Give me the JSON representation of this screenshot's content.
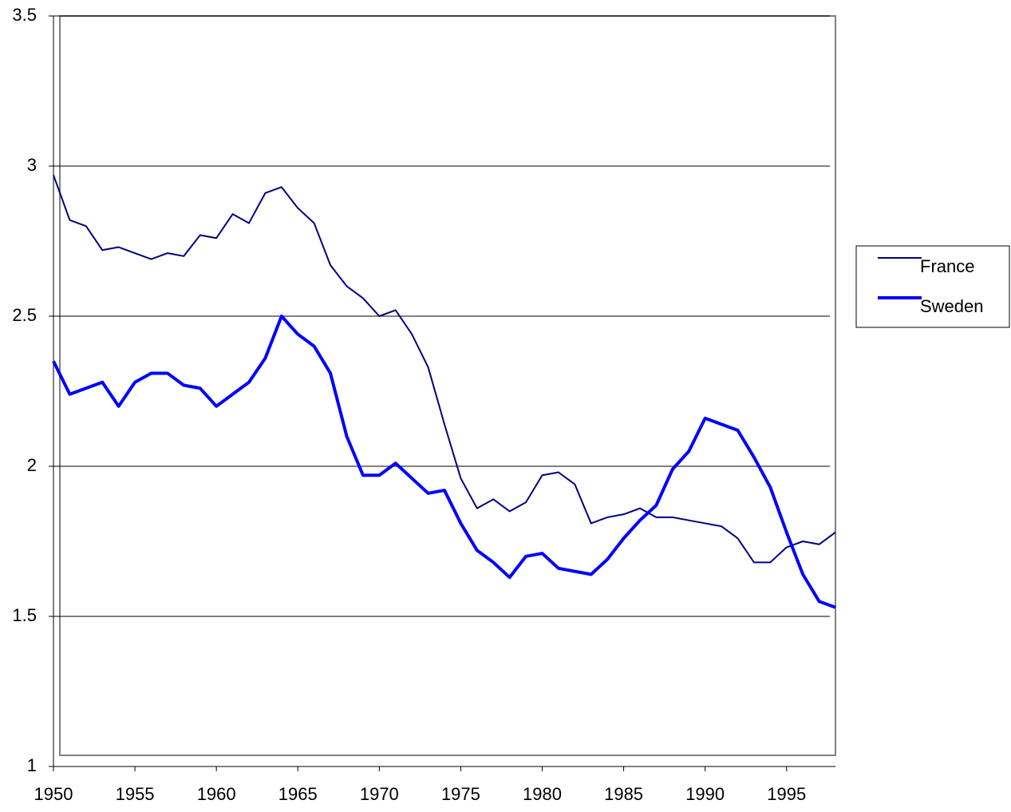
{
  "chart_data": {
    "type": "line",
    "x": [
      1950,
      1951,
      1952,
      1953,
      1954,
      1955,
      1956,
      1957,
      1958,
      1959,
      1960,
      1961,
      1962,
      1963,
      1964,
      1965,
      1966,
      1967,
      1968,
      1969,
      1970,
      1971,
      1972,
      1973,
      1974,
      1975,
      1976,
      1977,
      1978,
      1979,
      1980,
      1981,
      1982,
      1983,
      1984,
      1985,
      1986,
      1987,
      1988,
      1989,
      1990,
      1991,
      1992,
      1993,
      1994,
      1995,
      1996,
      1997,
      1998
    ],
    "series": [
      {
        "name": "France",
        "color": "#000080",
        "width": 2,
        "values": [
          2.97,
          2.82,
          2.8,
          2.72,
          2.73,
          2.71,
          2.69,
          2.71,
          2.7,
          2.77,
          2.76,
          2.84,
          2.81,
          2.91,
          2.93,
          2.86,
          2.81,
          2.67,
          2.6,
          2.56,
          2.5,
          2.52,
          2.44,
          2.33,
          2.14,
          1.96,
          1.86,
          1.89,
          1.85,
          1.88,
          1.97,
          1.98,
          1.94,
          1.81,
          1.83,
          1.84,
          1.86,
          1.83,
          1.83,
          1.82,
          1.81,
          1.8,
          1.76,
          1.68,
          1.68,
          1.73,
          1.75,
          1.74,
          1.78
        ]
      },
      {
        "name": "Sweden",
        "color": "#0000ff",
        "width": 4,
        "values": [
          2.35,
          2.24,
          2.26,
          2.28,
          2.2,
          2.28,
          2.31,
          2.31,
          2.27,
          2.26,
          2.2,
          2.24,
          2.28,
          2.36,
          2.5,
          2.44,
          2.4,
          2.31,
          2.1,
          1.97,
          1.97,
          2.01,
          1.96,
          1.91,
          1.92,
          1.81,
          1.72,
          1.68,
          1.63,
          1.7,
          1.71,
          1.66,
          1.65,
          1.64,
          1.69,
          1.76,
          1.82,
          1.87,
          1.99,
          2.05,
          2.16,
          2.14,
          2.12,
          2.03,
          1.93,
          1.78,
          1.64,
          1.55,
          1.53
        ]
      }
    ],
    "xlim": [
      1950,
      1998
    ],
    "xticks": [
      1950,
      1955,
      1960,
      1965,
      1970,
      1975,
      1980,
      1985,
      1990,
      1995
    ],
    "ylim": [
      1,
      3.5
    ],
    "yticks": [
      1,
      1.5,
      2,
      2.5,
      3,
      3.5
    ],
    "grid": true,
    "legend": "right"
  }
}
